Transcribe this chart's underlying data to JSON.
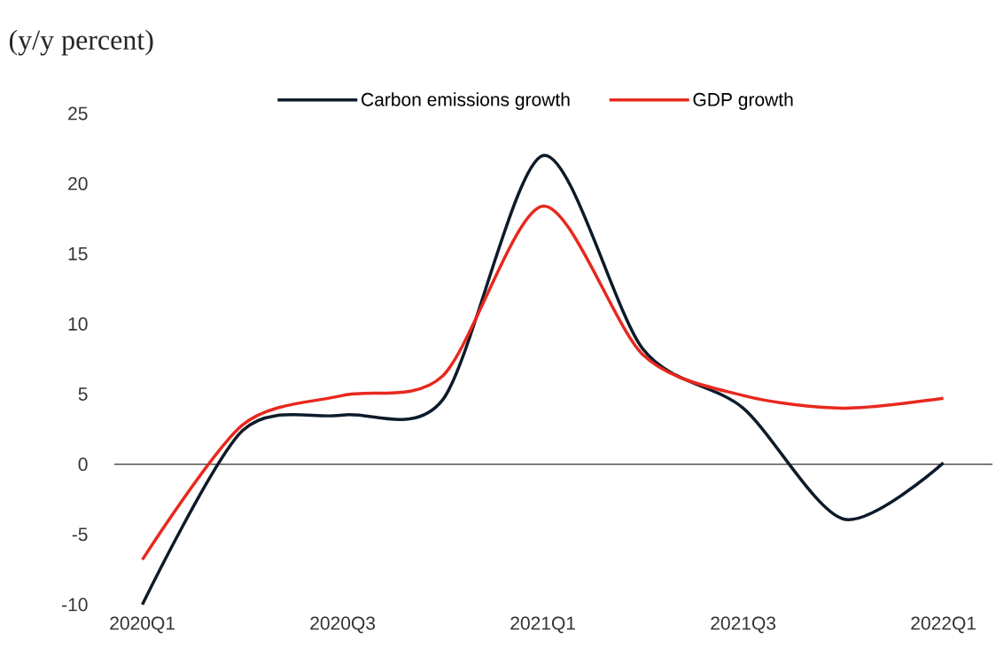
{
  "chart_data": {
    "type": "line",
    "ylabel": "(y/y percent)",
    "categories": [
      "2020Q1",
      null,
      "2020Q3",
      null,
      "2021Q1",
      null,
      "2021Q3",
      null,
      "2022Q1"
    ],
    "series": [
      {
        "name": "Carbon emissions growth",
        "color": "#0d1b2a",
        "values": [
          -10.0,
          2.4,
          3.5,
          4.6,
          22.0,
          8.2,
          4.0,
          -3.9,
          0.1
        ]
      },
      {
        "name": "GDP growth",
        "color": "#e8281e",
        "values": [
          -6.8,
          2.8,
          4.9,
          6.3,
          18.4,
          7.8,
          4.9,
          4.0,
          4.7
        ]
      }
    ],
    "ylim": [
      -10,
      25
    ],
    "yticks": [
      -10,
      -5,
      0,
      5,
      10,
      15,
      20,
      25
    ],
    "ref_lines": [
      {
        "axis": "y",
        "value": 0,
        "color": "#000000"
      }
    ],
    "legend": "top",
    "grid": false,
    "marker": "none",
    "line_style": "solid"
  }
}
